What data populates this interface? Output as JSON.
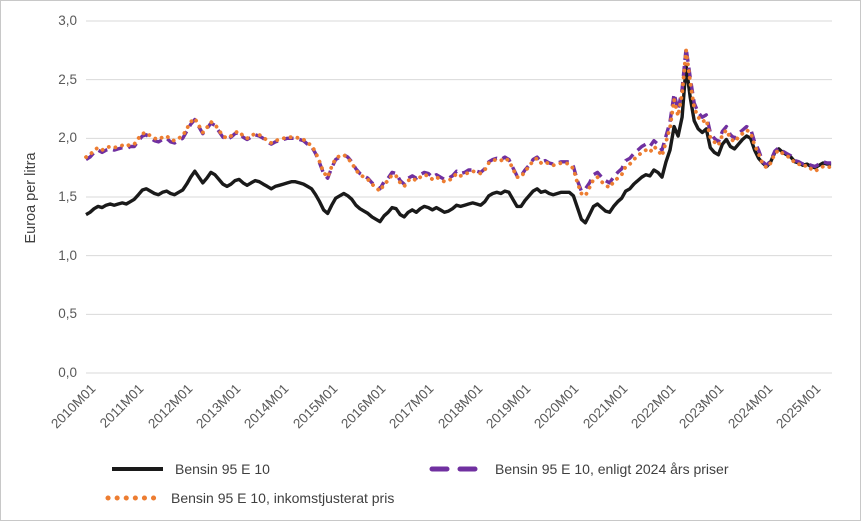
{
  "window": {
    "background": "#ffffff",
    "border_color": "#c8c8c8"
  },
  "chart_data": {
    "type": "line",
    "title": "",
    "xlabel": "",
    "ylabel": "Euroa per litra",
    "ylim": [
      0,
      3
    ],
    "y_tick_step": 0.5,
    "y_tick_labels": [
      "0,0",
      "0,5",
      "1,0",
      "1,5",
      "2,0",
      "2,5",
      "3,0"
    ],
    "x_tick_labels": [
      "2010M01",
      "2011M01",
      "2012M01",
      "2013M01",
      "2014M01",
      "2015M01",
      "2016M01",
      "2017M01",
      "2018M01",
      "2019M01",
      "2020M01",
      "2021M01",
      "2022M01",
      "2023M01",
      "2024M01",
      "2025M01"
    ],
    "x_frequency": "monthly",
    "x_range": [
      "2010M01",
      "2025M06"
    ],
    "grid": "horizontal",
    "grid_color": "#d9d9d9",
    "tick_label_color": "#595959",
    "legend_position": "bottom",
    "series": [
      {
        "id": "nominal",
        "name": "Bensin 95 E 10",
        "color": "#1a1a1a",
        "style": "solid",
        "values": [
          1.35,
          1.37,
          1.4,
          1.42,
          1.41,
          1.43,
          1.44,
          1.43,
          1.44,
          1.45,
          1.44,
          1.46,
          1.48,
          1.52,
          1.56,
          1.57,
          1.55,
          1.53,
          1.52,
          1.54,
          1.55,
          1.53,
          1.52,
          1.54,
          1.56,
          1.61,
          1.67,
          1.72,
          1.67,
          1.62,
          1.66,
          1.71,
          1.69,
          1.65,
          1.61,
          1.59,
          1.61,
          1.64,
          1.65,
          1.62,
          1.6,
          1.62,
          1.64,
          1.63,
          1.61,
          1.59,
          1.57,
          1.59,
          1.6,
          1.61,
          1.62,
          1.63,
          1.63,
          1.62,
          1.61,
          1.59,
          1.57,
          1.52,
          1.46,
          1.39,
          1.36,
          1.43,
          1.49,
          1.51,
          1.53,
          1.51,
          1.48,
          1.43,
          1.4,
          1.38,
          1.36,
          1.33,
          1.31,
          1.29,
          1.34,
          1.37,
          1.41,
          1.4,
          1.35,
          1.33,
          1.37,
          1.39,
          1.37,
          1.4,
          1.42,
          1.41,
          1.39,
          1.41,
          1.39,
          1.37,
          1.38,
          1.4,
          1.43,
          1.42,
          1.43,
          1.44,
          1.45,
          1.44,
          1.43,
          1.46,
          1.51,
          1.53,
          1.54,
          1.53,
          1.55,
          1.54,
          1.48,
          1.42,
          1.42,
          1.47,
          1.51,
          1.55,
          1.57,
          1.54,
          1.55,
          1.53,
          1.52,
          1.53,
          1.54,
          1.54,
          1.54,
          1.51,
          1.41,
          1.31,
          1.28,
          1.35,
          1.42,
          1.44,
          1.41,
          1.38,
          1.37,
          1.42,
          1.46,
          1.49,
          1.55,
          1.57,
          1.61,
          1.64,
          1.67,
          1.69,
          1.68,
          1.73,
          1.71,
          1.67,
          1.8,
          1.9,
          2.1,
          2.02,
          2.18,
          2.62,
          2.35,
          2.15,
          2.08,
          2.05,
          2.08,
          1.92,
          1.88,
          1.86,
          1.95,
          1.99,
          1.93,
          1.91,
          1.95,
          1.99,
          2.02,
          2.0,
          1.9,
          1.83,
          1.79,
          1.76,
          1.8,
          1.88,
          1.91,
          1.88,
          1.86,
          1.84,
          1.8,
          1.79,
          1.77,
          1.78,
          1.76,
          1.75,
          1.77,
          1.79,
          1.78,
          1.78
        ]
      },
      {
        "id": "real-2024-prices",
        "name": "Bensin 95 E 10, enligt 2024 års priser",
        "color": "#7030a0",
        "style": "dashed",
        "values": [
          1.82,
          1.84,
          1.88,
          1.9,
          1.88,
          1.9,
          1.91,
          1.9,
          1.91,
          1.92,
          1.91,
          1.93,
          1.93,
          1.98,
          2.02,
          2.03,
          2.0,
          1.98,
          1.97,
          1.99,
          2.0,
          1.97,
          1.96,
          1.98,
          2.0,
          2.06,
          2.12,
          2.16,
          2.1,
          2.04,
          2.08,
          2.13,
          2.11,
          2.06,
          2.01,
          1.99,
          2.01,
          2.04,
          2.05,
          2.01,
          1.99,
          2.01,
          2.03,
          2.02,
          2.0,
          1.97,
          1.95,
          1.97,
          1.98,
          1.99,
          2.0,
          2.0,
          2.0,
          1.99,
          1.98,
          1.95,
          1.93,
          1.87,
          1.79,
          1.7,
          1.66,
          1.75,
          1.82,
          1.84,
          1.86,
          1.84,
          1.8,
          1.74,
          1.7,
          1.68,
          1.66,
          1.62,
          1.6,
          1.57,
          1.63,
          1.66,
          1.71,
          1.7,
          1.64,
          1.61,
          1.66,
          1.68,
          1.66,
          1.69,
          1.71,
          1.7,
          1.67,
          1.69,
          1.67,
          1.65,
          1.66,
          1.68,
          1.72,
          1.7,
          1.71,
          1.73,
          1.73,
          1.72,
          1.71,
          1.74,
          1.8,
          1.82,
          1.83,
          1.82,
          1.84,
          1.82,
          1.75,
          1.68,
          1.68,
          1.73,
          1.77,
          1.82,
          1.84,
          1.8,
          1.81,
          1.79,
          1.78,
          1.79,
          1.8,
          1.8,
          1.8,
          1.76,
          1.64,
          1.55,
          1.57,
          1.62,
          1.69,
          1.71,
          1.67,
          1.64,
          1.62,
          1.67,
          1.71,
          1.74,
          1.81,
          1.83,
          1.87,
          1.9,
          1.93,
          1.95,
          1.93,
          1.98,
          1.95,
          1.9,
          2.02,
          2.14,
          2.38,
          2.24,
          2.42,
          2.77,
          2.52,
          2.3,
          2.22,
          2.18,
          2.2,
          2.05,
          2.0,
          1.97,
          2.06,
          2.1,
          2.03,
          2.0,
          2.04,
          2.07,
          2.1,
          2.08,
          1.97,
          1.9,
          1.8,
          1.77,
          1.81,
          1.89,
          1.92,
          1.89,
          1.87,
          1.85,
          1.81,
          1.8,
          1.78,
          1.79,
          1.77,
          1.76,
          1.78,
          1.8,
          1.79,
          1.79
        ]
      },
      {
        "id": "income-adjusted",
        "name": "Bensin 95 E 10, inkomstjusterat pris",
        "color": "#ed7d31",
        "style": "dotted",
        "values": [
          1.84,
          1.86,
          1.9,
          1.92,
          1.9,
          1.92,
          1.93,
          1.92,
          1.93,
          1.94,
          1.93,
          1.95,
          1.95,
          2.0,
          2.04,
          2.05,
          2.02,
          2.0,
          1.99,
          2.01,
          2.02,
          1.99,
          1.98,
          2.0,
          2.02,
          2.08,
          2.14,
          2.17,
          2.11,
          2.05,
          2.09,
          2.14,
          2.12,
          2.07,
          2.02,
          2.0,
          2.02,
          2.05,
          2.06,
          2.02,
          2.0,
          2.02,
          2.04,
          2.03,
          2.01,
          1.98,
          1.96,
          1.98,
          1.99,
          2.0,
          2.01,
          2.01,
          2.01,
          2.0,
          1.99,
          1.96,
          1.94,
          1.88,
          1.8,
          1.71,
          1.67,
          1.76,
          1.83,
          1.85,
          1.86,
          1.83,
          1.79,
          1.73,
          1.69,
          1.67,
          1.65,
          1.61,
          1.58,
          1.55,
          1.61,
          1.64,
          1.69,
          1.68,
          1.62,
          1.59,
          1.64,
          1.66,
          1.64,
          1.67,
          1.69,
          1.68,
          1.65,
          1.67,
          1.65,
          1.63,
          1.64,
          1.66,
          1.7,
          1.68,
          1.69,
          1.71,
          1.72,
          1.71,
          1.7,
          1.73,
          1.79,
          1.81,
          1.82,
          1.81,
          1.83,
          1.81,
          1.74,
          1.67,
          1.67,
          1.72,
          1.76,
          1.81,
          1.83,
          1.79,
          1.8,
          1.78,
          1.77,
          1.78,
          1.79,
          1.79,
          1.78,
          1.74,
          1.62,
          1.53,
          1.51,
          1.58,
          1.65,
          1.67,
          1.63,
          1.6,
          1.58,
          1.63,
          1.66,
          1.69,
          1.76,
          1.78,
          1.82,
          1.85,
          1.88,
          1.9,
          1.88,
          1.93,
          1.9,
          1.85,
          1.97,
          2.09,
          2.33,
          2.19,
          2.38,
          2.75,
          2.48,
          2.26,
          2.18,
          2.14,
          2.16,
          2.01,
          1.97,
          1.94,
          2.03,
          2.07,
          2.0,
          1.97,
          2.01,
          2.04,
          2.07,
          2.05,
          1.94,
          1.87,
          1.78,
          1.75,
          1.79,
          1.87,
          1.9,
          1.87,
          1.85,
          1.83,
          1.79,
          1.78,
          1.76,
          1.77,
          1.74,
          1.72,
          1.74,
          1.76,
          1.75,
          1.76
        ]
      }
    ]
  }
}
